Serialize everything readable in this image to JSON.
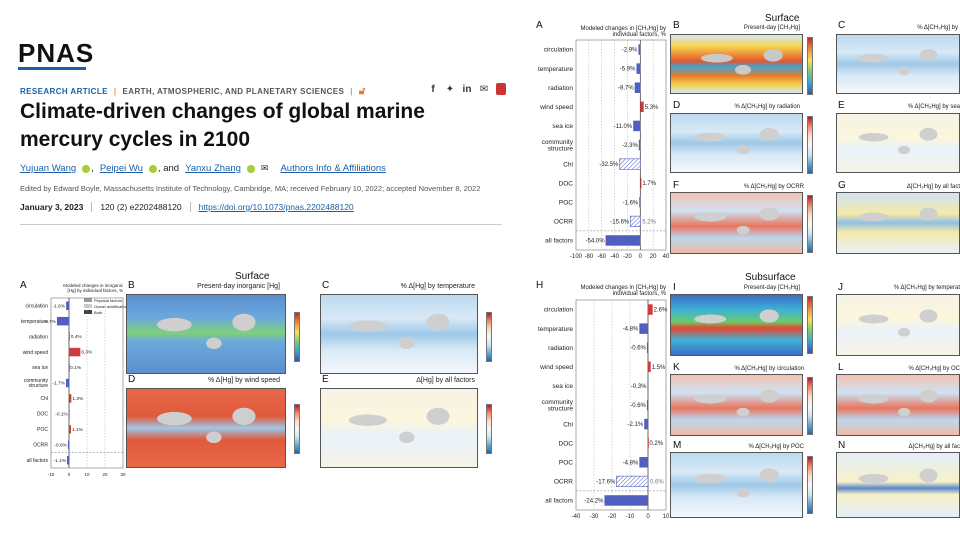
{
  "header": {
    "logo": "PNAS",
    "article_type": "RESEARCH ARTICLE",
    "subject": "EARTH, ATMOSPHERIC, AND PLANETARY SCIENCES",
    "separator": "|",
    "title": "Climate-driven changes of global marine mercury cycles in 2100",
    "authors": [
      "Yujuan Wang",
      "Peipei Wu",
      "Yanxu Zhang"
    ],
    "and_text": ", and",
    "comma": ",",
    "affiliations_link": "Authors Info & Affiliations",
    "edited_by": "Edited by Edward Boyle, Massachusetts Institute of Technology, Cambridge, MA; received February 10, 2022; accepted November 8, 2022",
    "date": "January 3, 2023",
    "citation": "120 (2) e2202488120",
    "doi": "https://doi.org/10.1073/pnas.2202488120"
  },
  "fig_top": {
    "a_letter": "A",
    "a_title": "Modeled changes in [CH₃Hg] by individual factors, %",
    "surface_title": "Surface",
    "b_letter": "B",
    "b_title": "Present-day [CH₃Hg]",
    "c_letter": "C",
    "c_title": "% Δ[CH₃Hg] by",
    "d_letter": "D",
    "d_title": "% Δ[CH₃Hg] by radiation",
    "e_letter": "E",
    "e_title": "% Δ[CH₃Hg] by sea",
    "f_letter": "F",
    "f_title": "% Δ[CH₃Hg] by OCRR",
    "g_letter": "G",
    "g_title": "Δ[CH₃Hg] by all fact",
    "x_ticks": [
      "-100",
      "-80",
      "-60",
      "-40",
      "-20",
      "0",
      "20",
      "40"
    ]
  },
  "fig_inorg": {
    "a_letter": "A",
    "a_title": "Modeled changes in inorganic [Hg] by individual factors, %",
    "legend": [
      "Physical factors",
      "Ocean acidification",
      "Both"
    ],
    "surface_title": "Surface",
    "b_letter": "B",
    "b_title": "Present-day inorganic [Hg]",
    "c_letter": "C",
    "c_title": "% Δ[Hg] by temperature",
    "d_letter": "D",
    "d_title": "% Δ[Hg] by wind speed",
    "e_letter": "E",
    "e_title": "Δ[Hg] by all factors",
    "x_ticks": [
      "-10",
      "0",
      "10",
      "20",
      "30"
    ]
  },
  "fig_sub": {
    "a_letter": "H",
    "a_title": "Modeled changes in [CH₃Hg] by individual factors, %",
    "surface_title": "Subsurface",
    "b_letter": "I",
    "b_title": "Present-day [CH₃Hg]",
    "c_letter": "J",
    "c_title": "% Δ[CH₃Hg] by temperat",
    "d_letter": "K",
    "d_title": "% Δ[CH₃Hg] by circulation",
    "e_letter": "L",
    "e_title": "% Δ[CH₃Hg] by OC",
    "f_letter": "M",
    "f_title": "% Δ[CH₃Hg] by POC",
    "g_letter": "N",
    "g_title": "Δ[CH₃Hg] by all fac",
    "x_ticks": [
      "-40",
      "-30",
      "-20",
      "-10",
      "0",
      "10"
    ]
  },
  "chart_data": [
    {
      "type": "bar",
      "title": "Modeled changes in [CH₃Hg] by individual factors, %",
      "categories": [
        "circulation",
        "temperature",
        "radiation",
        "wind speed",
        "sea ice",
        "community structure",
        "Chl",
        "DOC",
        "POC",
        "OCRR",
        "all factors"
      ],
      "values": [
        -2.9,
        -5.9,
        -8.7,
        5.3,
        -11.0,
        -2.3,
        -32.5,
        1.7,
        -1.6,
        -15.6,
        -54.0
      ],
      "labels": [
        "-2.9%",
        "-5.9%",
        "-8.7%",
        "5.3%",
        "-11.0%",
        "-2.3%",
        "-32.5%",
        "1.7%",
        "-1.6%",
        "-15.6%",
        "-54.0%"
      ],
      "second_label": {
        "OCRR": "5.2%"
      },
      "xlim": [
        -100,
        40
      ]
    },
    {
      "type": "bar",
      "title": "Modeled changes in inorganic [Hg] by individual factors, %",
      "categories": [
        "circulation",
        "temperature",
        "radiation",
        "wind speed",
        "sea ice",
        "community structure",
        "Chl",
        "DOC",
        "POC",
        "OCRR",
        "all factors"
      ],
      "values": [
        -1.6,
        -6.7,
        0.4,
        6.3,
        0.1,
        -1.7,
        1.3,
        -0.1,
        1.1,
        -0.6,
        -1.1
      ],
      "labels": [
        "-1.6%",
        "-6.7%",
        "0.4%",
        "6.3%",
        "0.1%",
        "-1.7%",
        "1.3%",
        "-0.1%",
        "1.1%",
        "-0.6%",
        "-1.1%"
      ],
      "xlim": [
        -10,
        30
      ]
    },
    {
      "type": "bar",
      "title": "Modeled changes in [CH₃Hg] by individual factors, %",
      "categories": [
        "circulation",
        "temperature",
        "radiation",
        "wind speed",
        "sea ice",
        "community structure",
        "Chl",
        "DOC",
        "POC",
        "OCRR",
        "all factors"
      ],
      "values": [
        2.6,
        -4.8,
        -0.6,
        1.5,
        -0.3,
        -0.6,
        -2.1,
        0.2,
        -4.8,
        -17.6,
        -24.2
      ],
      "labels": [
        "2.6%",
        "-4.8%",
        "-0.6%",
        "1.5%",
        "-0.3%",
        "-0.6%",
        "-2.1%",
        "0.2%",
        "-4.8%",
        "-17.6%",
        "-24.2%"
      ],
      "second_label": {
        "OCRR": "0.6%"
      },
      "xlim": [
        -40,
        10
      ]
    }
  ],
  "colors": {
    "neg": "#5160c0",
    "pos": "#d03a3a",
    "hatch": "#5160c0",
    "brand": "#1a5fa8"
  }
}
